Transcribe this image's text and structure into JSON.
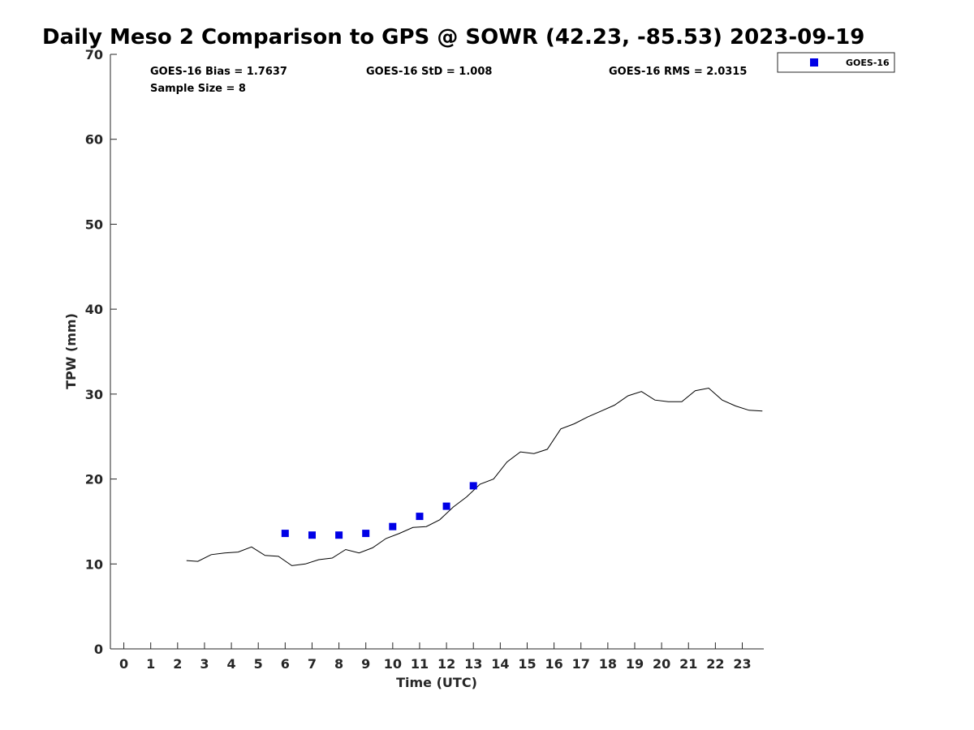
{
  "chart_data": {
    "type": "scatter",
    "title": "Daily Meso 2 Comparison to GPS @ SOWR (42.23, -85.53) 2023-09-19",
    "xlabel": "Time (UTC)",
    "ylabel": "TPW (mm)",
    "xlim": [
      -0.5,
      23.8
    ],
    "ylim": [
      0,
      70
    ],
    "x_ticks": [
      0,
      1,
      2,
      3,
      4,
      5,
      6,
      7,
      8,
      9,
      10,
      11,
      12,
      13,
      14,
      15,
      16,
      17,
      18,
      19,
      20,
      21,
      22,
      23
    ],
    "y_ticks": [
      0,
      10,
      20,
      30,
      40,
      50,
      60,
      70
    ],
    "grid": false,
    "legend_position": "top-right, outside plot area",
    "stats": {
      "bias": "GOES-16 Bias = 1.7637",
      "std": "GOES-16 StD = 1.008",
      "rms": "GOES-16 RMS = 2.0315",
      "sample": "Sample Size = 8"
    },
    "series": [
      {
        "name": "GOES-16",
        "kind": "scatter",
        "marker": "square",
        "color": "#0000e6",
        "x": [
          6,
          7,
          8,
          9,
          10,
          11,
          12,
          13
        ],
        "y": [
          13.6,
          13.4,
          13.4,
          13.6,
          14.4,
          15.6,
          16.8,
          19.2
        ]
      },
      {
        "kind": "line",
        "color": "#000000",
        "x": [
          2.33,
          2.75,
          3.25,
          3.75,
          4.25,
          4.75,
          5.25,
          5.75,
          6.25,
          6.75,
          7.25,
          7.75,
          8.25,
          8.75,
          9.25,
          9.75,
          10.25,
          10.75,
          11.25,
          11.75,
          12.25,
          12.75,
          13.25,
          13.75,
          14.25,
          14.75,
          15.25,
          15.75,
          16.25,
          16.75,
          17.25,
          17.75,
          18.25,
          18.75,
          19.25,
          19.75,
          20.25,
          20.75,
          21.25,
          21.75,
          22.25,
          22.75,
          23.25,
          23.75
        ],
        "y": [
          10.4,
          10.3,
          11.1,
          11.3,
          11.4,
          12.0,
          11.0,
          10.9,
          9.8,
          10.0,
          10.5,
          10.7,
          11.7,
          11.3,
          11.9,
          13.0,
          13.6,
          14.3,
          14.4,
          15.2,
          16.7,
          17.9,
          19.4,
          20.0,
          22.0,
          23.2,
          23.0,
          23.5,
          25.9,
          26.5,
          27.3,
          28.0,
          28.7,
          29.8,
          30.3,
          29.3,
          29.1,
          29.1,
          30.4,
          30.7,
          29.3,
          28.6,
          28.1,
          28.0
        ]
      }
    ]
  }
}
